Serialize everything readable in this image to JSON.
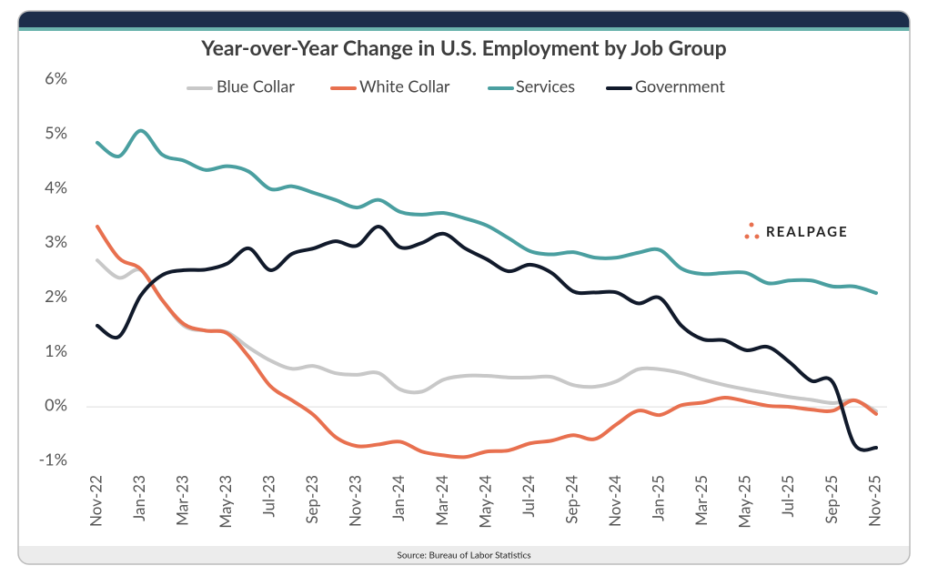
{
  "chart_data": {
    "type": "line",
    "title": "Year-over-Year Change in U.S. Employment by Job Group",
    "source": "Source: Bureau of Labor Statistics",
    "logo": "REALPAGE",
    "categories": [
      "Nov-22",
      null,
      "Jan-23",
      null,
      "Mar-23",
      null,
      "May-23",
      null,
      "Jul-23",
      null,
      "Sep-23",
      null,
      "Nov-23",
      null,
      "Jan-24",
      null,
      "Mar-24",
      null,
      "May-24",
      null,
      "Jul-24",
      null,
      "Sep-24",
      null,
      "Nov-24",
      null,
      "Jan-25",
      null,
      "Mar-25",
      null,
      "May-25",
      null,
      "Jul-25",
      null,
      "Sep-25",
      null,
      "Nov-25"
    ],
    "ylim": [
      -1,
      6
    ],
    "yticks": [
      {
        "value": -1,
        "label": "-1%"
      },
      {
        "value": 0,
        "label": "0%"
      },
      {
        "value": 1,
        "label": "1%"
      },
      {
        "value": 2,
        "label": "2%"
      },
      {
        "value": 3,
        "label": "3%"
      },
      {
        "value": 4,
        "label": "4%"
      },
      {
        "value": 5,
        "label": "5%"
      },
      {
        "value": 6,
        "label": "6%"
      }
    ],
    "zero_line": true,
    "series": [
      {
        "name": "Blue Collar",
        "color": "#c8c8c8",
        "values": [
          2.69,
          2.37,
          2.51,
          1.96,
          1.49,
          1.4,
          1.37,
          1.09,
          0.85,
          0.7,
          0.75,
          0.62,
          0.59,
          0.62,
          0.32,
          0.28,
          0.5,
          0.57,
          0.57,
          0.54,
          0.54,
          0.55,
          0.4,
          0.37,
          0.47,
          0.69,
          0.69,
          0.62,
          0.5,
          0.4,
          0.32,
          0.25,
          0.18,
          0.13,
          0.07,
          0.12,
          -0.08
        ]
      },
      {
        "name": "White Collar",
        "color": "#e8704f",
        "values": [
          3.31,
          2.73,
          2.53,
          1.96,
          1.52,
          1.4,
          1.35,
          0.92,
          0.38,
          0.12,
          -0.15,
          -0.55,
          -0.72,
          -0.69,
          -0.64,
          -0.82,
          -0.89,
          -0.92,
          -0.82,
          -0.8,
          -0.67,
          -0.62,
          -0.52,
          -0.59,
          -0.32,
          -0.07,
          -0.15,
          0.03,
          0.08,
          0.17,
          0.1,
          0.02,
          0.0,
          -0.05,
          -0.07,
          0.12,
          -0.13
        ]
      },
      {
        "name": "Services",
        "color": "#4a9fa0",
        "values": [
          4.85,
          4.6,
          5.07,
          4.63,
          4.52,
          4.35,
          4.42,
          4.32,
          4.0,
          4.05,
          3.93,
          3.8,
          3.66,
          3.8,
          3.58,
          3.53,
          3.56,
          3.46,
          3.33,
          3.1,
          2.86,
          2.8,
          2.84,
          2.74,
          2.74,
          2.83,
          2.88,
          2.54,
          2.44,
          2.46,
          2.46,
          2.27,
          2.32,
          2.32,
          2.21,
          2.21,
          2.09
        ]
      },
      {
        "name": "Government",
        "color": "#111a2b",
        "values": [
          1.49,
          1.29,
          2.04,
          2.42,
          2.51,
          2.52,
          2.63,
          2.91,
          2.51,
          2.81,
          2.91,
          3.04,
          2.96,
          3.31,
          2.93,
          3.01,
          3.18,
          2.91,
          2.71,
          2.49,
          2.61,
          2.46,
          2.12,
          2.1,
          2.1,
          1.9,
          2.0,
          1.49,
          1.24,
          1.22,
          1.04,
          1.1,
          0.82,
          0.48,
          0.45,
          -0.69,
          -0.75
        ]
      }
    ]
  }
}
